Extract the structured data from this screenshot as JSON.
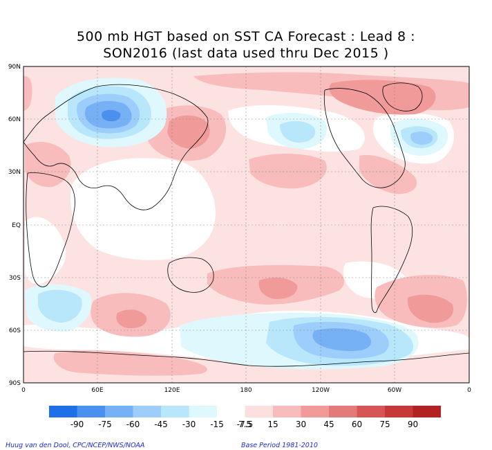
{
  "title": {
    "line1": "500 mb HGT based on SST CA Forecast : Lead 8 :",
    "line2": "SON2016 (last data used thru Dec 2015 )"
  },
  "axes": {
    "lat_labels": [
      "90N",
      "60N",
      "30N",
      "EQ",
      "30S",
      "60S",
      "90S"
    ],
    "lon_labels": [
      "0",
      "60E",
      "120E",
      "180",
      "120W",
      "60W",
      "0"
    ]
  },
  "colorbar": {
    "colors": [
      "#1f6fe6",
      "#4a90ef",
      "#76b1f6",
      "#9dcdfa",
      "#b8e6fb",
      "#dff8fd",
      "#ffffff",
      "#fce0e0",
      "#f8bcbc",
      "#f09a9a",
      "#e27a7a",
      "#d65656",
      "#c73838",
      "#b22222"
    ],
    "labels": [
      "-90",
      "-75",
      "-60",
      "-45",
      "-30",
      "-15",
      "-7.5",
      "7.5",
      "15",
      "30",
      "45",
      "60",
      "75",
      "90"
    ]
  },
  "credits": {
    "left": "Huug van den Dool, CPC/NCEP/NWS/NOAA",
    "right": "Base Period 1981-2010"
  },
  "field_colors": {
    "bg_pos": "#fde2e2",
    "pos15": "#f8bcbc",
    "pos30": "#f09a9a",
    "pos45": "#e27a7a",
    "neutral": "#ffffff",
    "neg7": "#dff8fd",
    "neg15": "#b8e6fb",
    "neg30": "#9dcdfa",
    "neg45": "#76b1f6",
    "neg60": "#4a90ef"
  }
}
